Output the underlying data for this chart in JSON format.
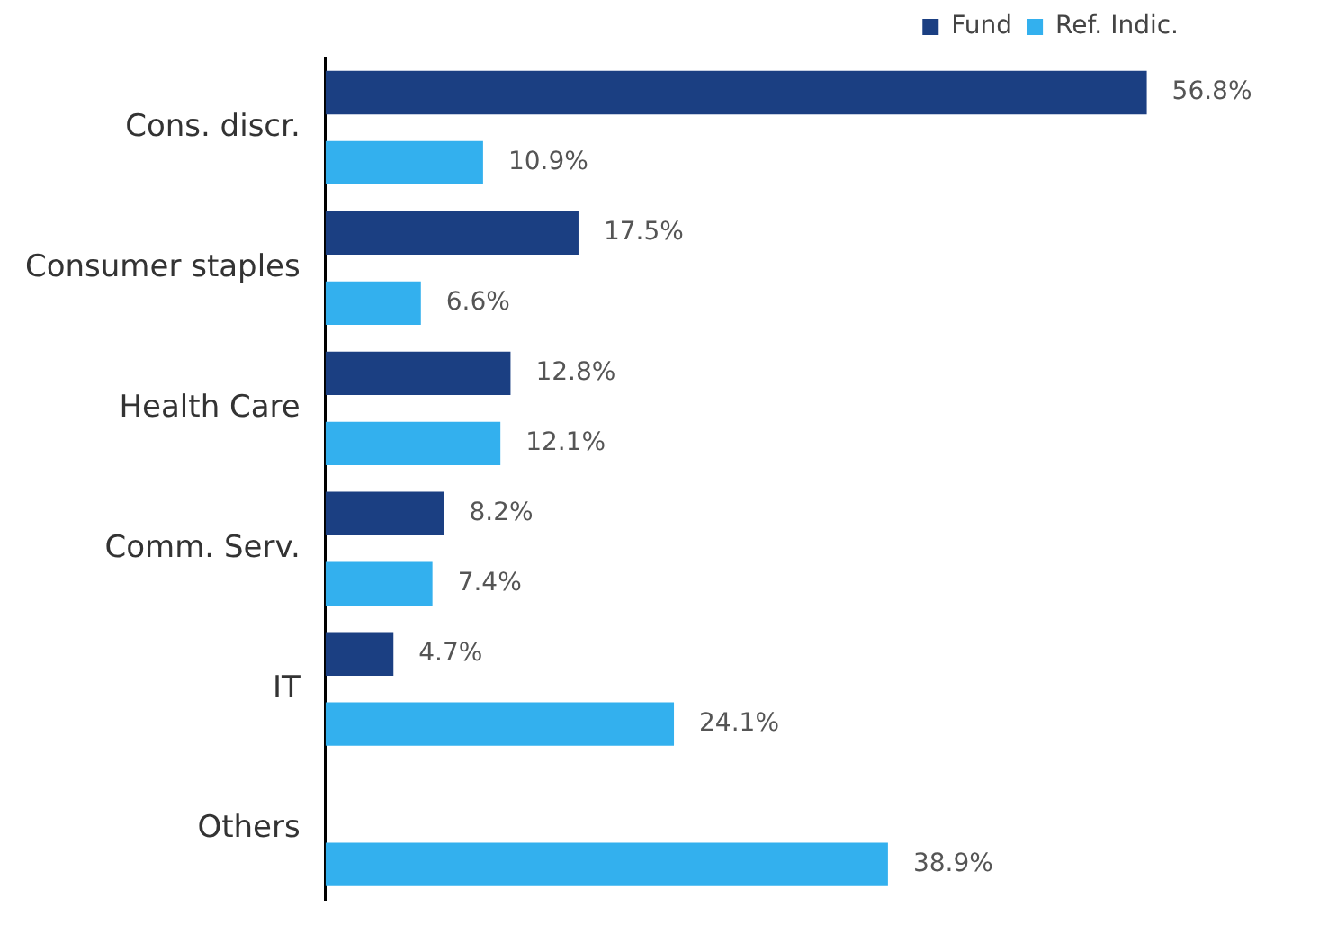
{
  "chart_data": {
    "type": "bar",
    "orientation": "horizontal",
    "categories": [
      "Cons. discr.",
      "Consumer staples",
      "Health Care",
      "Comm. Serv.",
      "IT",
      "Others"
    ],
    "series": [
      {
        "name": "Fund",
        "color": "#1b3f82",
        "values": [
          56.8,
          17.5,
          12.8,
          8.2,
          4.7,
          null
        ],
        "value_labels": [
          "56.8%",
          "17.5%",
          "12.8%",
          "8.2%",
          "4.7%",
          null
        ]
      },
      {
        "name": "Ref. Indic.",
        "color": "#33b0ee",
        "values": [
          10.9,
          6.6,
          12.1,
          7.4,
          24.1,
          38.9
        ],
        "value_labels": [
          "10.9%",
          "6.6%",
          "12.1%",
          "7.4%",
          "24.1%",
          "38.9%"
        ]
      }
    ],
    "tick_labels": "y",
    "legend": "top right",
    "grid": false
  }
}
